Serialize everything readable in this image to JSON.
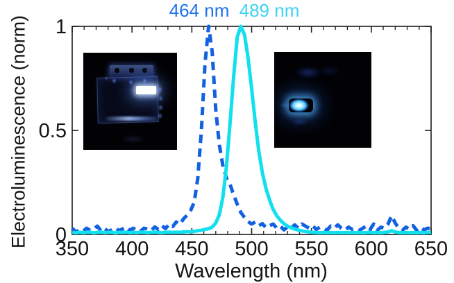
{
  "figure": {
    "background": "#ffffff",
    "axis_color": "#1c1c1c",
    "text_color": "#141414"
  },
  "annotations": {
    "peaks": [
      {
        "text": "464 nm",
        "color": "#1e72ec",
        "wavelength_nm": 464
      },
      {
        "text": "489 nm",
        "color": "#3ed2f2",
        "wavelength_nm": 489
      }
    ]
  },
  "insets": [
    {
      "side": "left",
      "alt": "photo-of-packaged-LED-device-emitting-blue-464nm"
    },
    {
      "side": "right",
      "alt": "photo-of-LED-pixel-emitting-cyan-489nm"
    }
  ],
  "chart_data": {
    "type": "line",
    "title": "",
    "xlabel": "Wavelength (nm)",
    "ylabel": "Electroluminescence (norm)",
    "xlim": [
      350,
      650
    ],
    "ylim": [
      0,
      1
    ],
    "x_ticks": [
      350,
      400,
      450,
      500,
      550,
      600,
      650
    ],
    "x_minor_step": 10,
    "y_ticks": [
      0,
      0.5,
      1
    ],
    "y_tick_labels": [
      "0",
      "0.5",
      "1"
    ],
    "grid": false,
    "legend": "none",
    "x_start": 350,
    "x_step": 3,
    "series": [
      {
        "name": "464 nm emitter",
        "peak_nm": 464,
        "style": "dashed",
        "color": "#1261e0",
        "values": [
          0.03,
          0.012,
          0.022,
          0.015,
          0.03,
          0.02,
          0.026,
          0.04,
          0.018,
          0.03,
          0.014,
          0.022,
          0.032,
          0.018,
          0.026,
          0.036,
          0.02,
          0.03,
          0.018,
          0.015,
          0.03,
          0.026,
          0.018,
          0.036,
          0.024,
          0.042,
          0.028,
          0.05,
          0.038,
          0.06,
          0.048,
          0.075,
          0.092,
          0.115,
          0.155,
          0.27,
          0.5,
          0.82,
          1.0,
          0.88,
          0.6,
          0.43,
          0.33,
          0.27,
          0.24,
          0.19,
          0.145,
          0.105,
          0.082,
          0.062,
          0.05,
          0.06,
          0.042,
          0.052,
          0.032,
          0.042,
          0.05,
          0.03,
          0.04,
          0.022,
          0.035,
          0.03,
          0.046,
          0.03,
          0.05,
          0.04,
          0.03,
          0.042,
          0.024,
          0.035,
          0.03,
          0.02,
          0.04,
          0.03,
          0.046,
          0.03,
          0.02,
          0.035,
          0.025,
          0.03,
          0.02,
          0.03,
          0.042,
          0.024,
          0.05,
          0.02,
          0.035,
          0.03,
          0.05,
          0.09,
          0.055,
          0.03,
          0.02,
          0.035,
          0.025,
          0.042,
          0.02,
          0.035,
          0.022,
          0.03,
          0.028
        ]
      },
      {
        "name": "489 nm emitter",
        "peak_nm": 489,
        "style": "solid",
        "color": "#12e0ef",
        "values": [
          0.01,
          0.007,
          0.011,
          0.008,
          0.01,
          0.011,
          0.007,
          0.01,
          0.011,
          0.008,
          0.01,
          0.011,
          0.007,
          0.01,
          0.009,
          0.011,
          0.008,
          0.01,
          0.008,
          0.011,
          0.01,
          0.008,
          0.01,
          0.011,
          0.009,
          0.008,
          0.01,
          0.011,
          0.01,
          0.011,
          0.01,
          0.012,
          0.014,
          0.012,
          0.015,
          0.018,
          0.02,
          0.024,
          0.028,
          0.035,
          0.055,
          0.095,
          0.18,
          0.33,
          0.54,
          0.76,
          0.95,
          1.0,
          0.96,
          0.85,
          0.7,
          0.54,
          0.4,
          0.295,
          0.22,
          0.165,
          0.12,
          0.09,
          0.068,
          0.052,
          0.04,
          0.032,
          0.026,
          0.021,
          0.017,
          0.014,
          0.012,
          0.01,
          0.009,
          0.008,
          0.009,
          0.008,
          0.009,
          0.008,
          0.009,
          0.008,
          0.009,
          0.008,
          0.009,
          0.008,
          0.009,
          0.008,
          0.009,
          0.01,
          0.008,
          0.009,
          0.008,
          0.01,
          0.012,
          0.018,
          0.012,
          0.009,
          0.008,
          0.009,
          0.008,
          0.009,
          0.008,
          0.009,
          0.008,
          0.009,
          0.01
        ]
      }
    ]
  }
}
